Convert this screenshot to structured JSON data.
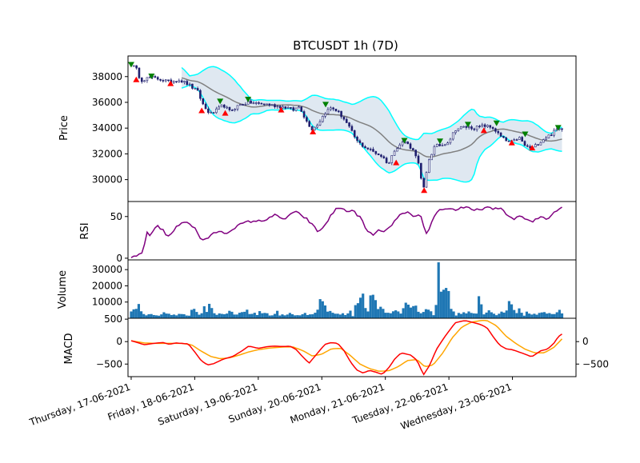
{
  "chart_data": {
    "type": "candlestick",
    "title": "BTCUSDT 1h (7D)",
    "colors": {
      "candle_up": "#ffffff",
      "candle_down": "#1f1f6e",
      "bollinger_band": "#00ffff",
      "bollinger_fill": "#dce6f0",
      "moving_average": "#808080",
      "rsi_line": "#800080",
      "volume_bars": "#1f77b4",
      "macd_line": "#ff0000",
      "signal_line": "#ffa500",
      "buy_marker": "#ff0000",
      "sell_marker": "#008000"
    },
    "x_tick_labels": [
      "Thursday, 17-06-2021",
      "Friday, 18-06-2021",
      "Saturday, 19-06-2021",
      "Sunday, 20-06-2021",
      "Monday, 21-06-2021",
      "Tuesday, 22-06-2021",
      "Wednesday, 23-06-2021"
    ],
    "x_range_days": [
      -0.05,
      7.0
    ],
    "panels": {
      "price": {
        "ylabel": "Price",
        "ylim": [
          28300,
          39600
        ],
        "yticks": [
          30000,
          32000,
          34000,
          36000,
          38000
        ],
        "anchors": [
          [
            0.0,
            38950
          ],
          [
            0.08,
            38600
          ],
          [
            0.15,
            37700
          ],
          [
            0.3,
            37950
          ],
          [
            0.45,
            37800
          ],
          [
            0.6,
            37600
          ],
          [
            0.75,
            37750
          ],
          [
            0.9,
            37400
          ],
          [
            1.05,
            36800
          ],
          [
            1.15,
            35600
          ],
          [
            1.25,
            35100
          ],
          [
            1.35,
            35400
          ],
          [
            1.45,
            35800
          ],
          [
            1.55,
            35300
          ],
          [
            1.7,
            35800
          ],
          [
            1.85,
            36000
          ],
          [
            2.0,
            35900
          ],
          [
            2.15,
            35850
          ],
          [
            2.3,
            35700
          ],
          [
            2.45,
            35600
          ],
          [
            2.55,
            35400
          ],
          [
            2.65,
            35700
          ],
          [
            2.75,
            34600
          ],
          [
            2.85,
            33900
          ],
          [
            2.95,
            34400
          ],
          [
            3.05,
            35200
          ],
          [
            3.15,
            35600
          ],
          [
            3.25,
            35300
          ],
          [
            3.35,
            34700
          ],
          [
            3.45,
            33900
          ],
          [
            3.55,
            33000
          ],
          [
            3.65,
            32600
          ],
          [
            3.8,
            32200
          ],
          [
            3.95,
            31800
          ],
          [
            4.05,
            31200
          ],
          [
            4.15,
            32400
          ],
          [
            4.3,
            33000
          ],
          [
            4.4,
            32500
          ],
          [
            4.5,
            31800
          ],
          [
            4.55,
            30300
          ],
          [
            4.6,
            29200
          ],
          [
            4.68,
            31500
          ],
          [
            4.78,
            32600
          ],
          [
            4.9,
            32700
          ],
          [
            5.0,
            33000
          ],
          [
            5.1,
            33900
          ],
          [
            5.25,
            34100
          ],
          [
            5.4,
            34000
          ],
          [
            5.55,
            34200
          ],
          [
            5.7,
            34000
          ],
          [
            5.8,
            33400
          ],
          [
            5.9,
            33000
          ],
          [
            6.0,
            32900
          ],
          [
            6.1,
            33300
          ],
          [
            6.2,
            32600
          ],
          [
            6.3,
            32400
          ],
          [
            6.4,
            32800
          ],
          [
            6.5,
            33200
          ],
          [
            6.6,
            33500
          ],
          [
            6.7,
            33900
          ],
          [
            6.78,
            34000
          ]
        ],
        "buy_signals": [
          [
            0.08,
            37750
          ],
          [
            0.62,
            37450
          ],
          [
            1.11,
            35350
          ],
          [
            1.48,
            35150
          ],
          [
            2.36,
            35400
          ],
          [
            2.86,
            33700
          ],
          [
            4.17,
            31300
          ],
          [
            4.61,
            29150
          ],
          [
            5.55,
            33800
          ],
          [
            5.99,
            32850
          ],
          [
            6.31,
            32450
          ]
        ],
        "sell_signals": [
          [
            0.0,
            38950
          ],
          [
            0.32,
            38050
          ],
          [
            1.4,
            36100
          ],
          [
            1.84,
            36250
          ],
          [
            3.06,
            35850
          ],
          [
            4.3,
            33050
          ],
          [
            4.86,
            33000
          ],
          [
            5.3,
            34300
          ],
          [
            5.75,
            34400
          ],
          [
            6.2,
            33550
          ],
          [
            6.72,
            34050
          ]
        ]
      },
      "rsi": {
        "ylabel": "RSI",
        "ylim": [
          -2,
          68
        ],
        "yticks": [
          0,
          50
        ],
        "anchors": [
          [
            0.0,
            0
          ],
          [
            0.1,
            3
          ],
          [
            0.18,
            8
          ],
          [
            0.25,
            30
          ],
          [
            0.3,
            27
          ],
          [
            0.4,
            40
          ],
          [
            0.5,
            34
          ],
          [
            0.58,
            25
          ],
          [
            0.7,
            36
          ],
          [
            0.8,
            44
          ],
          [
            0.9,
            43
          ],
          [
            1.0,
            36
          ],
          [
            1.1,
            22
          ],
          [
            1.2,
            24
          ],
          [
            1.35,
            32
          ],
          [
            1.5,
            30
          ],
          [
            1.65,
            38
          ],
          [
            1.8,
            43
          ],
          [
            1.95,
            45
          ],
          [
            2.05,
            44
          ],
          [
            2.15,
            48
          ],
          [
            2.25,
            52
          ],
          [
            2.4,
            46
          ],
          [
            2.5,
            53
          ],
          [
            2.6,
            55
          ],
          [
            2.75,
            48
          ],
          [
            2.85,
            40
          ],
          [
            2.95,
            31
          ],
          [
            3.05,
            40
          ],
          [
            3.15,
            52
          ],
          [
            3.25,
            61
          ],
          [
            3.4,
            57
          ],
          [
            3.5,
            56
          ],
          [
            3.62,
            48
          ],
          [
            3.7,
            33
          ],
          [
            3.8,
            28
          ],
          [
            3.9,
            33
          ],
          [
            4.0,
            33
          ],
          [
            4.1,
            38
          ],
          [
            4.2,
            51
          ],
          [
            4.35,
            55
          ],
          [
            4.45,
            48
          ],
          [
            4.55,
            52
          ],
          [
            4.65,
            28
          ],
          [
            4.8,
            56
          ],
          [
            4.95,
            60
          ],
          [
            5.1,
            58
          ],
          [
            5.2,
            61
          ],
          [
            5.3,
            60
          ],
          [
            5.4,
            57
          ],
          [
            5.5,
            59
          ],
          [
            5.6,
            61
          ],
          [
            5.7,
            58
          ],
          [
            5.8,
            61
          ],
          [
            5.9,
            54
          ],
          [
            6.0,
            46
          ],
          [
            6.1,
            51
          ],
          [
            6.2,
            47
          ],
          [
            6.3,
            43
          ],
          [
            6.45,
            50
          ],
          [
            6.55,
            47
          ],
          [
            6.65,
            55
          ],
          [
            6.72,
            59
          ],
          [
            6.78,
            61
          ]
        ]
      },
      "volume": {
        "ylabel": "Volume",
        "ylim": [
          0,
          36000
        ],
        "yticks": [
          10000,
          20000,
          30000
        ],
        "bars": [
          4200,
          5500,
          5800,
          8800,
          4300,
          2600,
          1800,
          2500,
          2600,
          2000,
          1800,
          1600,
          2400,
          3700,
          2900,
          2800,
          2000,
          2300,
          1800,
          2700,
          2600,
          2500,
          1700,
          1600,
          5200,
          5800,
          3900,
          2200,
          3100,
          7400,
          3900,
          8900,
          6300,
          3100,
          2100,
          3000,
          2700,
          2500,
          2900,
          4600,
          4000,
          2300,
          2300,
          3400,
          3800,
          4000,
          5300,
          2600,
          2700,
          3400,
          2000,
          4400,
          3100,
          3300,
          3100,
          1700,
          1800,
          2700,
          4600,
          1700,
          2400,
          1800,
          2300,
          3300,
          2500,
          1800,
          1900,
          1800,
          2500,
          3300,
          2000,
          2400,
          2500,
          3400,
          5300,
          11800,
          10500,
          7900,
          4100,
          4500,
          3400,
          2800,
          2800,
          2300,
          3100,
          2000,
          3000,
          4700,
          1300,
          8100,
          9300,
          12700,
          15200,
          6300,
          4200,
          14100,
          14500,
          11200,
          5700,
          7100,
          5800,
          3400,
          3400,
          3100,
          4300,
          4900,
          4200,
          2900,
          6200,
          9600,
          8400,
          6600,
          7500,
          7800,
          4000,
          3100,
          3900,
          5600,
          5300,
          4300,
          1900,
          8200,
          34500,
          16400,
          17600,
          18700,
          16800,
          5800,
          4200,
          1700,
          3300,
          2700,
          3700,
          3000,
          4200,
          3300,
          3000,
          2900,
          13600,
          8600,
          2400,
          3500,
          4900,
          3700,
          2800,
          1900,
          2800,
          4100,
          3500,
          4800,
          10600,
          8600,
          5100,
          3200,
          6100,
          3400,
          1600,
          4100,
          2900,
          2300,
          2800,
          2200,
          3300,
          3600,
          3800,
          2900,
          3200,
          2600,
          2600,
          3700,
          5200,
          3000
        ]
      },
      "macd": {
        "ylabel": "MACD",
        "ylim": [
          -780,
          520
        ],
        "yticks": [
          -500,
          0,
          500
        ],
        "right_yticks": [
          -500,
          0
        ],
        "macd_anchors": [
          [
            0.0,
            20
          ],
          [
            0.1,
            -20
          ],
          [
            0.2,
            -70
          ],
          [
            0.35,
            -40
          ],
          [
            0.5,
            -20
          ],
          [
            0.6,
            -60
          ],
          [
            0.7,
            -30
          ],
          [
            0.8,
            -40
          ],
          [
            0.9,
            -50
          ],
          [
            1.0,
            -230
          ],
          [
            1.1,
            -420
          ],
          [
            1.2,
            -520
          ],
          [
            1.3,
            -490
          ],
          [
            1.45,
            -390
          ],
          [
            1.6,
            -330
          ],
          [
            1.75,
            -200
          ],
          [
            1.85,
            -100
          ],
          [
            2.0,
            -150
          ],
          [
            2.15,
            -110
          ],
          [
            2.25,
            -100
          ],
          [
            2.4,
            -110
          ],
          [
            2.5,
            -100
          ],
          [
            2.6,
            -180
          ],
          [
            2.7,
            -340
          ],
          [
            2.8,
            -480
          ],
          [
            2.9,
            -310
          ],
          [
            3.05,
            -60
          ],
          [
            3.15,
            -20
          ],
          [
            3.25,
            -40
          ],
          [
            3.35,
            -200
          ],
          [
            3.45,
            -450
          ],
          [
            3.55,
            -630
          ],
          [
            3.65,
            -700
          ],
          [
            3.75,
            -640
          ],
          [
            3.85,
            -680
          ],
          [
            3.95,
            -730
          ],
          [
            4.05,
            -590
          ],
          [
            4.15,
            -380
          ],
          [
            4.25,
            -250
          ],
          [
            4.4,
            -300
          ],
          [
            4.5,
            -420
          ],
          [
            4.6,
            -740
          ],
          [
            4.7,
            -520
          ],
          [
            4.8,
            -180
          ],
          [
            4.95,
            140
          ],
          [
            5.1,
            420
          ],
          [
            5.25,
            470
          ],
          [
            5.4,
            420
          ],
          [
            5.5,
            380
          ],
          [
            5.6,
            310
          ],
          [
            5.7,
            100
          ],
          [
            5.8,
            -80
          ],
          [
            5.9,
            -160
          ],
          [
            6.0,
            -180
          ],
          [
            6.1,
            -230
          ],
          [
            6.2,
            -280
          ],
          [
            6.3,
            -340
          ],
          [
            6.45,
            -200
          ],
          [
            6.55,
            -170
          ],
          [
            6.65,
            -40
          ],
          [
            6.72,
            110
          ],
          [
            6.78,
            170
          ]
        ],
        "signal_anchors": [
          [
            0.0,
            20
          ],
          [
            0.2,
            -30
          ],
          [
            0.4,
            -40
          ],
          [
            0.6,
            -40
          ],
          [
            0.8,
            -40
          ],
          [
            0.95,
            -70
          ],
          [
            1.1,
            -210
          ],
          [
            1.25,
            -330
          ],
          [
            1.4,
            -380
          ],
          [
            1.55,
            -360
          ],
          [
            1.7,
            -300
          ],
          [
            1.85,
            -230
          ],
          [
            2.0,
            -180
          ],
          [
            2.2,
            -140
          ],
          [
            2.4,
            -120
          ],
          [
            2.55,
            -120
          ],
          [
            2.7,
            -200
          ],
          [
            2.85,
            -320
          ],
          [
            3.0,
            -280
          ],
          [
            3.15,
            -160
          ],
          [
            3.3,
            -150
          ],
          [
            3.45,
            -310
          ],
          [
            3.6,
            -500
          ],
          [
            3.75,
            -600
          ],
          [
            3.9,
            -660
          ],
          [
            4.05,
            -650
          ],
          [
            4.2,
            -560
          ],
          [
            4.35,
            -420
          ],
          [
            4.5,
            -400
          ],
          [
            4.62,
            -560
          ],
          [
            4.75,
            -520
          ],
          [
            4.9,
            -260
          ],
          [
            5.05,
            80
          ],
          [
            5.2,
            320
          ],
          [
            5.35,
            430
          ],
          [
            5.5,
            470
          ],
          [
            5.6,
            470
          ],
          [
            5.75,
            350
          ],
          [
            5.9,
            120
          ],
          [
            6.05,
            -40
          ],
          [
            6.2,
            -170
          ],
          [
            6.35,
            -250
          ],
          [
            6.5,
            -250
          ],
          [
            6.65,
            -130
          ],
          [
            6.78,
            60
          ]
        ]
      }
    }
  }
}
